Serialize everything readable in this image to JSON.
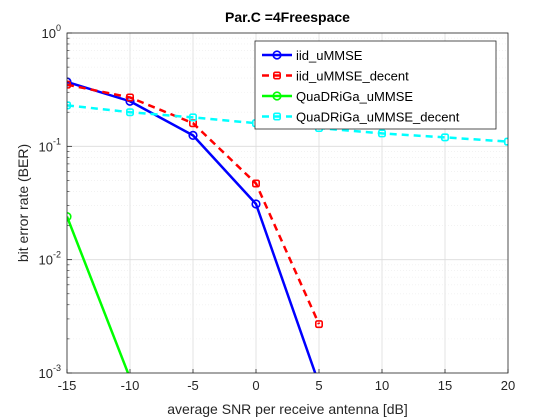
{
  "chart_data": {
    "type": "line",
    "title": "Par.C =4Freespace",
    "xlabel": "average SNR per receive antenna [dB]",
    "ylabel": "bit error rate (BER)",
    "xlim": [
      -15,
      20
    ],
    "ylim": [
      0.001,
      1
    ],
    "yscale": "log",
    "grid": true,
    "legend_position": "top-right",
    "x_ticks": [
      {
        "v": -15,
        "label": "-15"
      },
      {
        "v": -10,
        "label": "-10"
      },
      {
        "v": -5,
        "label": "-5"
      },
      {
        "v": 0,
        "label": "0"
      },
      {
        "v": 5,
        "label": "5"
      },
      {
        "v": 10,
        "label": "10"
      },
      {
        "v": 15,
        "label": "15"
      },
      {
        "v": 20,
        "label": "20"
      }
    ],
    "y_ticks": [
      {
        "exp": 0,
        "base": "10",
        "e": "0"
      },
      {
        "exp": -1,
        "base": "10",
        "e": "-1"
      },
      {
        "exp": -2,
        "base": "10",
        "e": "-2"
      },
      {
        "exp": -3,
        "base": "10",
        "e": "-3"
      }
    ],
    "series": [
      {
        "name": "iid_uMMSE",
        "color": "#0000ff",
        "dash": "solid",
        "x": [
          -15,
          -10,
          -5,
          0,
          5
        ],
        "y": [
          0.37,
          0.25,
          0.125,
          0.031,
          0.0008
        ]
      },
      {
        "name": "iid_uMMSE_decent",
        "color": "#ff0000",
        "dash": "dashed",
        "x": [
          -15,
          -10,
          -5,
          0,
          5
        ],
        "y": [
          0.35,
          0.27,
          0.16,
          0.047,
          0.0027
        ]
      },
      {
        "name": "QuaDRiGa_uMMSE",
        "color": "#00ff00",
        "dash": "solid",
        "x": [
          -15,
          -10
        ],
        "y": [
          0.024,
          0.0009
        ]
      },
      {
        "name": "QuaDRiGa_uMMSE_decent",
        "color": "#00ffff",
        "dash": "dashed",
        "x": [
          -15,
          -10,
          -5,
          0,
          5,
          10,
          15,
          20
        ],
        "y": [
          0.23,
          0.2,
          0.18,
          0.16,
          0.145,
          0.13,
          0.12,
          0.11
        ]
      }
    ]
  }
}
